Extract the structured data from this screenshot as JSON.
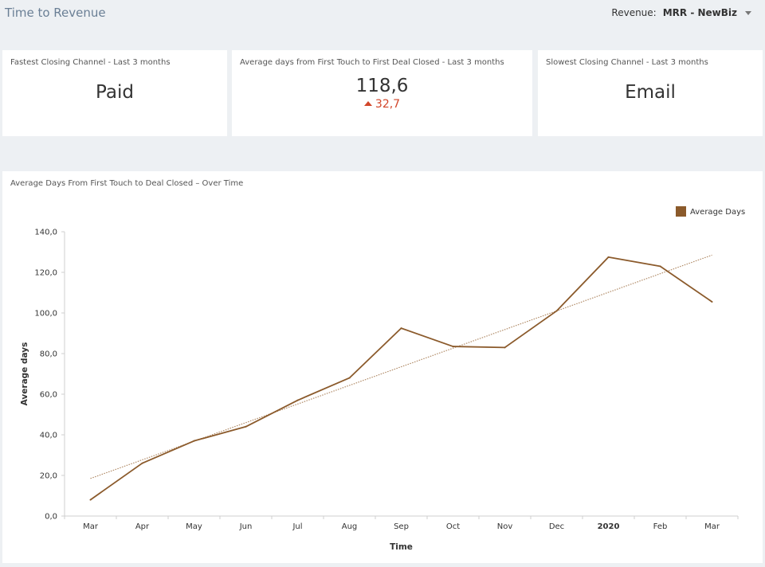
{
  "header": {
    "title": "Time to Revenue",
    "filter_label": "Revenue:",
    "filter_value": "MRR - NewBiz"
  },
  "cards": {
    "fastest": {
      "title": "Fastest Closing Channel - Last 3 months",
      "value": "Paid"
    },
    "average": {
      "title": "Average days from First Touch to First Deal Closed - Last 3 months",
      "value": "118,6",
      "delta": "32,7",
      "delta_direction": "up",
      "delta_color": "#d2462a"
    },
    "slowest": {
      "title": "Slowest Closing Channel - Last 3 months",
      "value": "Email"
    }
  },
  "chart_title": "Average Days From First Touch to Deal Closed – Over Time",
  "chart_data": {
    "type": "line",
    "categories": [
      "Mar",
      "Apr",
      "May",
      "Jun",
      "Jul",
      "Aug",
      "Sep",
      "Oct",
      "Nov",
      "Dec",
      "2020",
      "Feb",
      "Mar"
    ],
    "series": [
      {
        "name": "Average Days",
        "color": "#8b5a2b",
        "values": [
          8,
          26,
          37,
          44,
          57,
          68,
          92.5,
          83.5,
          83,
          101,
          127.5,
          123,
          105.5
        ]
      }
    ],
    "trendline": {
      "start": 18.5,
      "end": 128.5,
      "style": "dotted"
    },
    "xlabel": "Time",
    "ylabel": "Average days",
    "ylim": [
      0,
      140
    ],
    "yticks": [
      "0,0",
      "20,0",
      "40,0",
      "60,0",
      "80,0",
      "100,0",
      "120,0",
      "140,0"
    ],
    "bold_category": "2020",
    "legend_position": "top-right",
    "grid": false
  }
}
